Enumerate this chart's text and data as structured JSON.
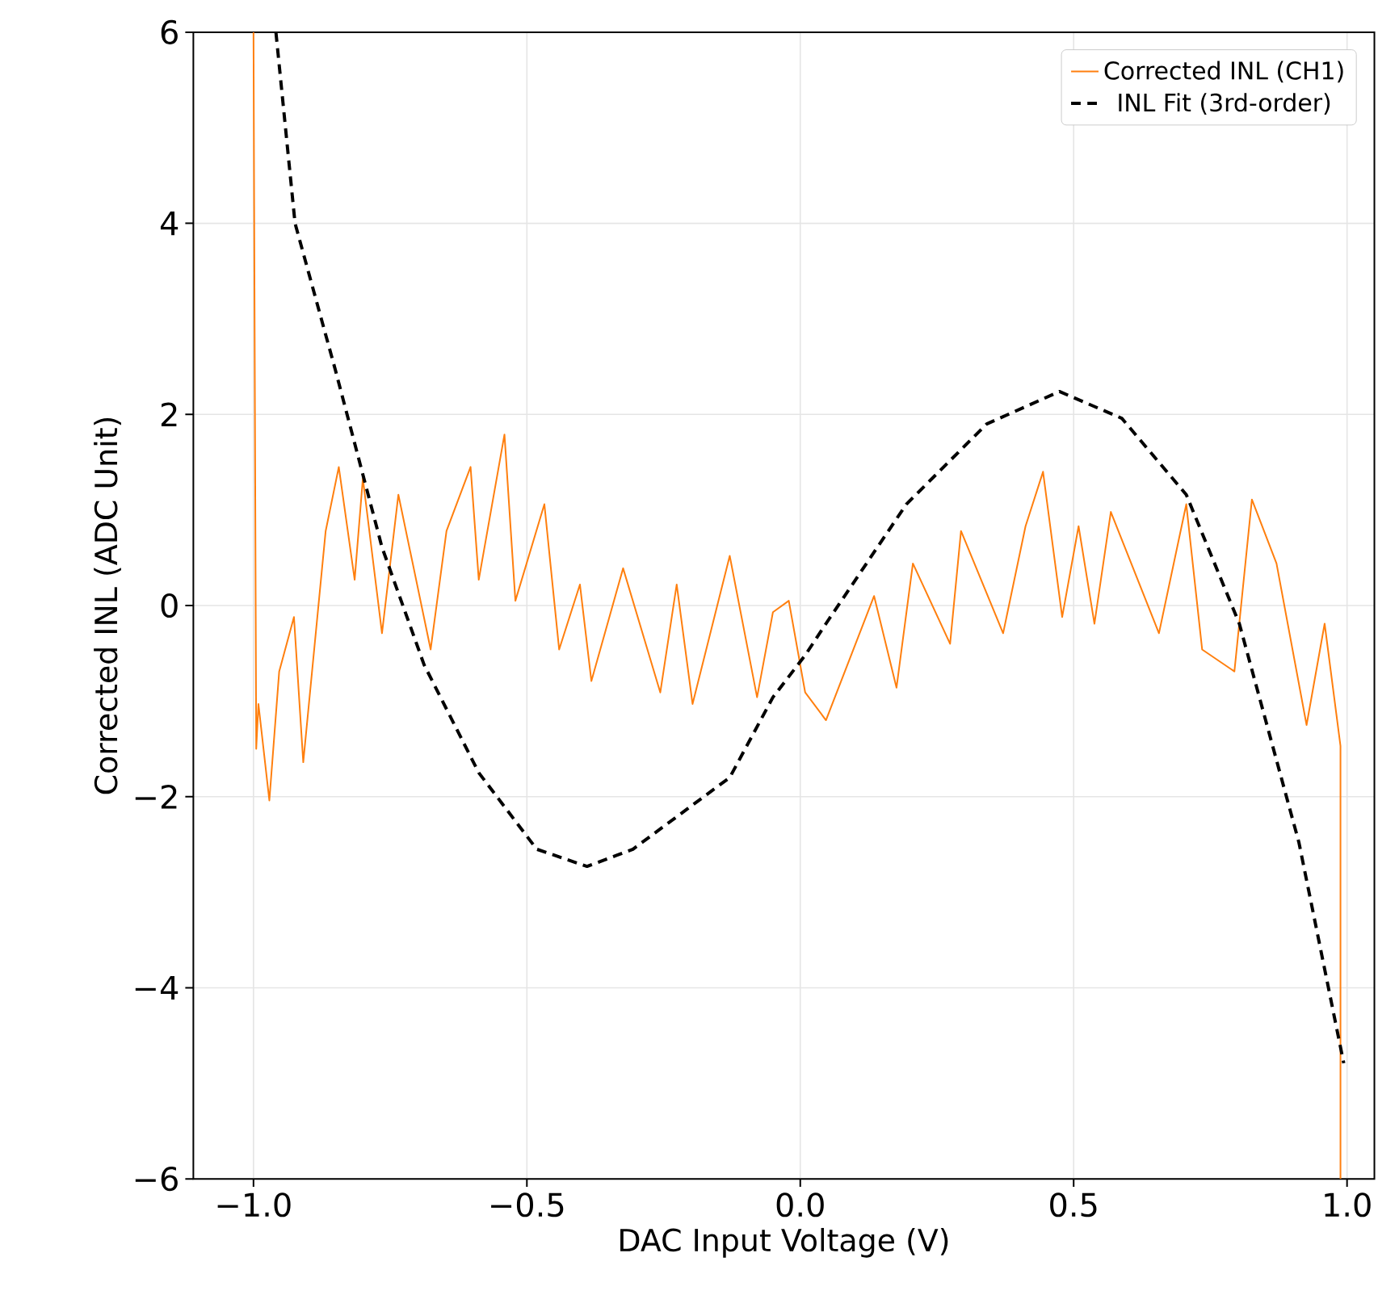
{
  "chart_data": {
    "type": "line",
    "xlabel": "DAC Input Voltage (V)",
    "ylabel": "Corrected INL (ADC Unit)",
    "xlim": [
      -1.11,
      1.05
    ],
    "ylim": [
      -6,
      6
    ],
    "xticks": [
      {
        "value": -1.0,
        "label": "−1.0"
      },
      {
        "value": -0.5,
        "label": "−0.5"
      },
      {
        "value": 0.0,
        "label": "0.0"
      },
      {
        "value": 0.5,
        "label": "0.5"
      },
      {
        "value": 1.0,
        "label": "1.0"
      }
    ],
    "yticks": [
      {
        "value": -6,
        "label": "−6"
      },
      {
        "value": -4,
        "label": "−4"
      },
      {
        "value": -2,
        "label": "−2"
      },
      {
        "value": 0,
        "label": "0"
      },
      {
        "value": 2,
        "label": "2"
      },
      {
        "value": 4,
        "label": "4"
      },
      {
        "value": 6,
        "label": "6"
      }
    ],
    "grid": true,
    "legend": "top right",
    "series": [
      {
        "name": "Corrected INL (CH1)",
        "color": "#ff7f0e",
        "line_style": "solid",
        "x": [
          -1.0,
          -0.995,
          -0.991,
          -0.971,
          -0.953,
          -0.926,
          -0.909,
          -0.868,
          -0.844,
          -0.815,
          -0.8,
          -0.765,
          -0.735,
          -0.676,
          -0.647,
          -0.603,
          -0.588,
          -0.541,
          -0.521,
          -0.468,
          -0.441,
          -0.403,
          -0.382,
          -0.324,
          -0.256,
          -0.226,
          -0.197,
          -0.129,
          -0.079,
          -0.05,
          -0.021,
          0.009,
          0.047,
          0.135,
          0.176,
          0.206,
          0.274,
          0.294,
          0.371,
          0.412,
          0.444,
          0.479,
          0.509,
          0.538,
          0.568,
          0.656,
          0.706,
          0.735,
          0.794,
          0.826,
          0.871,
          0.926,
          0.959,
          0.988,
          0.988
        ],
        "values": [
          6,
          -1.5,
          -1.03,
          -2.04,
          -0.69,
          -0.12,
          -1.64,
          0.78,
          1.45,
          0.27,
          1.33,
          -0.29,
          1.16,
          -0.46,
          0.78,
          1.45,
          0.27,
          1.79,
          0.05,
          1.06,
          -0.46,
          0.22,
          -0.79,
          0.39,
          -0.91,
          0.22,
          -1.03,
          0.52,
          -0.96,
          -0.07,
          0.05,
          -0.91,
          -1.2,
          0.1,
          -0.86,
          0.44,
          -0.4,
          0.78,
          -0.29,
          0.83,
          1.4,
          -0.12,
          0.83,
          -0.19,
          0.98,
          -0.29,
          1.06,
          -0.46,
          -0.69,
          1.11,
          0.44,
          -1.25,
          -0.19,
          -1.47,
          -6
        ]
      },
      {
        "name": "INL Fit (3rd-order)",
        "color": "#000000",
        "line_style": "dashed",
        "x": [
          -0.959,
          -0.924,
          -0.85,
          -0.765,
          -0.688,
          -0.588,
          -0.482,
          -0.39,
          -0.306,
          -0.129,
          -0.05,
          0.009,
          0.047,
          0.194,
          0.341,
          0.474,
          0.588,
          0.706,
          0.803,
          0.912,
          0.994
        ],
        "values": [
          6.0,
          4.0,
          2.46,
          0.61,
          -0.62,
          -1.75,
          -2.55,
          -2.73,
          -2.55,
          -1.8,
          -0.96,
          -0.52,
          -0.19,
          1.06,
          1.9,
          2.24,
          1.96,
          1.16,
          -0.19,
          -2.48,
          -4.79
        ]
      }
    ]
  }
}
